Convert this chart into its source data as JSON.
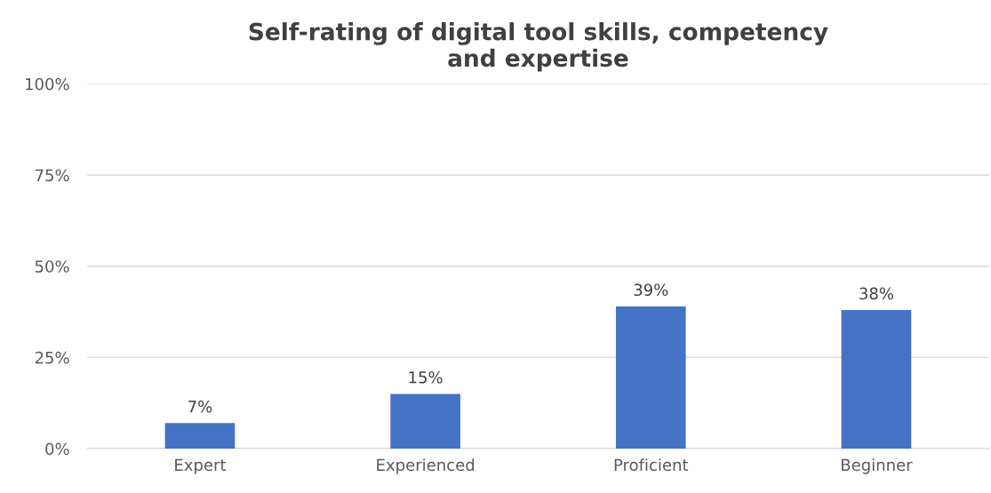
{
  "chart_data": {
    "type": "bar",
    "title": "Self-rating of digital tool skills, competency\nand expertise",
    "categories": [
      "Expert",
      "Experienced",
      "Proficient",
      "Beginner"
    ],
    "values": [
      7,
      15,
      39,
      38
    ],
    "color": "#4472c4",
    "value_labels": [
      "7%",
      "15%",
      "39%",
      "38%"
    ],
    "ylim": [
      0,
      100
    ],
    "yticks": [
      {
        "value": 0,
        "label": "0%"
      },
      {
        "value": 25,
        "label": "25%"
      },
      {
        "value": 50,
        "label": "50%"
      },
      {
        "value": 75,
        "label": "75%"
      },
      {
        "value": 100,
        "label": "100%"
      }
    ],
    "grid": "y"
  }
}
